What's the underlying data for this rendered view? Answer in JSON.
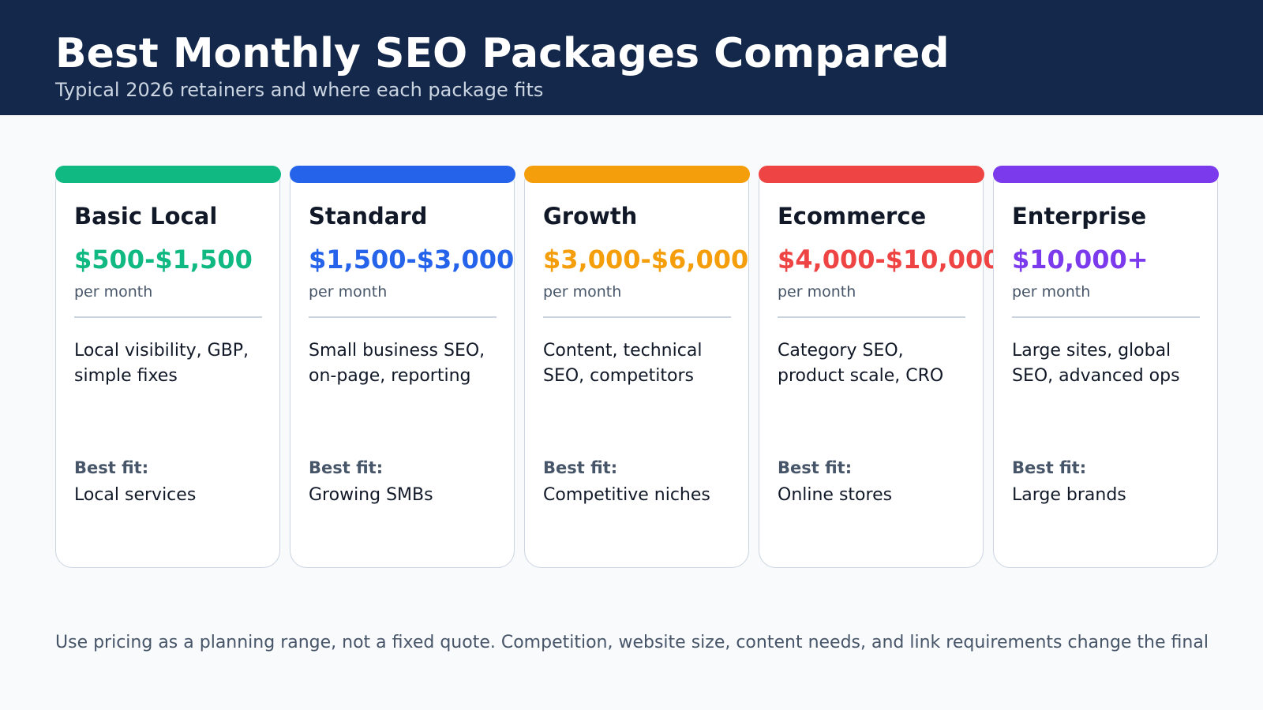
{
  "header": {
    "title": "Best Monthly SEO Packages Compared",
    "subtitle": "Typical 2026 retainers and where each package fits"
  },
  "cards": [
    {
      "name": "Basic Local",
      "price": "$500-$1,500",
      "period": "per month",
      "description": "Local visibility, GBP, simple fixes",
      "fit_label": "Best fit:",
      "fit_value": "Local services",
      "accent": "#10b981"
    },
    {
      "name": "Standard",
      "price": "$1,500-$3,000",
      "period": "per month",
      "description": "Small business SEO, on-page, reporting",
      "fit_label": "Best fit:",
      "fit_value": "Growing SMBs",
      "accent": "#2563eb"
    },
    {
      "name": "Growth",
      "price": "$3,000-$6,000",
      "period": "per month",
      "description": "Content, technical SEO, competitors",
      "fit_label": "Best fit:",
      "fit_value": "Competitive niches",
      "accent": "#f59e0b"
    },
    {
      "name": "Ecommerce",
      "price": "$4,000-$10,000",
      "period": "per month",
      "description": "Category SEO, product scale, CRO",
      "fit_label": "Best fit:",
      "fit_value": "Online stores",
      "accent": "#ef4444"
    },
    {
      "name": "Enterprise",
      "price": "$10,000+",
      "period": "per month",
      "description": "Large sites, global SEO, advanced ops",
      "fit_label": "Best fit:",
      "fit_value": "Large brands",
      "accent": "#7c3aed"
    }
  ],
  "footer": {
    "note": "Use pricing as a planning range, not a fixed quote. Competition, website size, content needs, and link requirements change the final"
  }
}
